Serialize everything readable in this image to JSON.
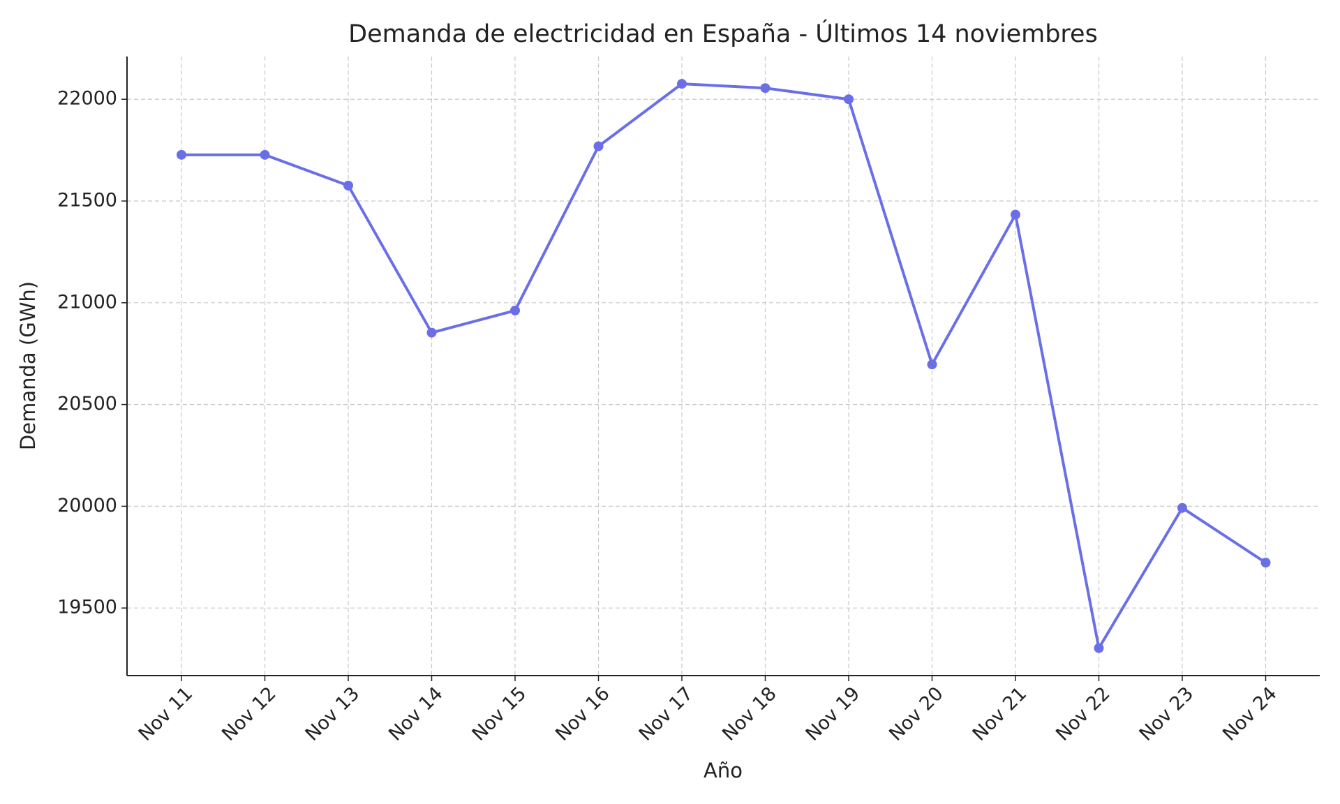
{
  "chart_data": {
    "type": "line",
    "title": "Demanda de electricidad en España - Últimos 14 noviembres",
    "xlabel": "Año",
    "ylabel": "Demanda (GWh)",
    "categories": [
      "Nov 11",
      "Nov 12",
      "Nov 13",
      "Nov 14",
      "Nov 15",
      "Nov 16",
      "Nov 17",
      "Nov 18",
      "Nov 19",
      "Nov 20",
      "Nov 21",
      "Nov 22",
      "Nov 23",
      "Nov 24"
    ],
    "series": [
      {
        "color": "#6a6fe8",
        "values": [
          21727,
          21727,
          21576,
          20853,
          20962,
          21769,
          22076,
          22055,
          22000,
          20697,
          21433,
          19303,
          19992,
          19723
        ]
      }
    ],
    "ylim": [
      19168,
      22210
    ],
    "yticks": [
      19500,
      20000,
      20500,
      21000,
      21500,
      22000
    ],
    "grid": true
  }
}
